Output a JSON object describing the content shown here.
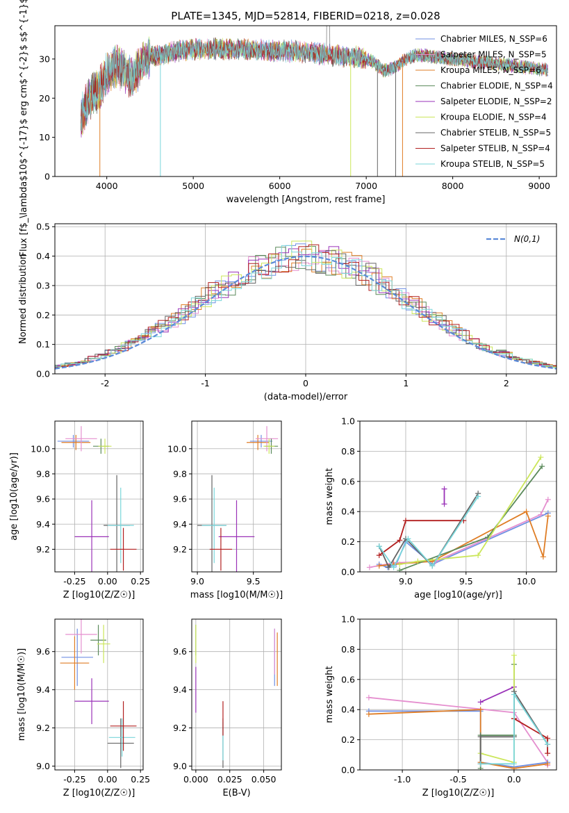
{
  "colors": {
    "chabrier_miles": "#6f8fe3",
    "salpeter_miles": "#e58fcf",
    "kroupa_miles": "#df7d25",
    "chabrier_elodie": "#5b8a5b",
    "salpeter_elodie": "#9a32b8",
    "kroupa_elodie": "#cbe65a",
    "chabrier_stelib": "#646464",
    "salpeter_stelib": "#b21f1f",
    "kroupa_stelib": "#79d6da",
    "normal": "#5b8ad8"
  },
  "chart_data": [
    {
      "id": "spectrum",
      "type": "line",
      "title": "PLATE=1345, MJD=52814, FIBERID=0218, z=0.028",
      "xlabel": "wavelength [Angstrom, rest frame]",
      "ylabel": "Flux [f$_\\lambda$10$^{-17}$ erg cm$^{-2}$ s$^{-1}$ A$^{-1}$]",
      "xlim": [
        3400,
        9200
      ],
      "ylim": [
        0,
        38.5
      ],
      "xticks": [
        "4000",
        "5000",
        "6000",
        "7000",
        "8000",
        "9000"
      ],
      "yticks": [
        "0",
        "10",
        "20",
        "30"
      ],
      "grid": false,
      "legend_position": "top-right",
      "series": [
        {
          "name": "Chabrier MILES, N_SSP=6",
          "key": "chabrier_miles"
        },
        {
          "name": "Salpeter MILES, N_SSP=5",
          "key": "salpeter_miles"
        },
        {
          "name": "Kroupa MILES, N_SSP=6",
          "key": "kroupa_miles"
        },
        {
          "name": "Chabrier ELODIE, N_SSP=4",
          "key": "chabrier_elodie"
        },
        {
          "name": "Salpeter ELODIE, N_SSP=2",
          "key": "salpeter_elodie"
        },
        {
          "name": "Kroupa ELODIE, N_SSP=4",
          "key": "kroupa_elodie"
        },
        {
          "name": "Chabrier STELIB, N_SSP=5",
          "key": "chabrier_stelib"
        },
        {
          "name": "Salpeter STELIB, N_SSP=4",
          "key": "salpeter_stelib"
        },
        {
          "name": "Kroupa STELIB, N_SSP=5",
          "key": "kroupa_stelib"
        }
      ],
      "continuum": {
        "x": [
          3700,
          3800,
          3900,
          4000,
          4100,
          4200,
          4300,
          4400,
          4500,
          4600,
          4700,
          4800,
          5000,
          5200,
          5400,
          5600,
          5800,
          6000,
          6200,
          6400,
          6600,
          6800,
          6900,
          7000,
          7100,
          7200,
          7300,
          7400,
          7500,
          7600,
          7800,
          8000,
          8200,
          8400,
          8600,
          8800,
          9000,
          9100
        ],
        "y": [
          15,
          20,
          22,
          26,
          28,
          27,
          25,
          29,
          31,
          31,
          31.5,
          32,
          32.5,
          32.5,
          32.5,
          32.5,
          32.2,
          32,
          32,
          31.5,
          31,
          30.5,
          30.5,
          30,
          29,
          27,
          27.5,
          29,
          30.5,
          31,
          30.5,
          30,
          29.5,
          29,
          28.5,
          28,
          27.5,
          27
        ]
      },
      "dropouts": [
        {
          "x": 3920,
          "key": "kroupa_miles"
        },
        {
          "x": 4620,
          "key": "kroupa_stelib"
        },
        {
          "x": 6820,
          "key": "kroupa_elodie"
        },
        {
          "x": 7130,
          "key": "chabrier_stelib"
        },
        {
          "x": 7340,
          "key": "chabrier_stelib"
        },
        {
          "x": 7420,
          "key": "kroupa_miles"
        }
      ]
    },
    {
      "id": "residuals",
      "type": "histogram",
      "xlabel": "(data-model)/error",
      "ylabel": "Normed distribution",
      "xlim": [
        -2.5,
        2.5
      ],
      "ylim": [
        0,
        0.51
      ],
      "xticks": [
        "-2",
        "-1",
        "0",
        "1",
        "2"
      ],
      "yticks": [
        "0.0",
        "0.1",
        "0.2",
        "0.3",
        "0.4",
        "0.5"
      ],
      "grid": true,
      "legend_position": "top-right",
      "reference_curve": {
        "name": "N(0,1)",
        "key": "normal",
        "mean": 0,
        "sigma": 1
      }
    },
    {
      "id": "age-vs-Z",
      "type": "errorbar",
      "xlabel": "Z [log10(Z/Z☉)]",
      "ylabel": "age  [log10(age/yr)]",
      "xlim": [
        -0.4,
        0.27
      ],
      "ylim": [
        9.02,
        10.22
      ],
      "xticks": [
        "-0.25",
        "0.00",
        "0.25"
      ],
      "yticks": [
        "9.2",
        "9.4",
        "9.6",
        "9.8",
        "10.0"
      ],
      "grid": true,
      "points": [
        {
          "key": "chabrier_miles",
          "x": -0.26,
          "y": 10.06,
          "xerr": 0.12,
          "yerr": 0.05
        },
        {
          "key": "kroupa_miles",
          "x": -0.24,
          "y": 10.05,
          "xerr": 0.11,
          "yerr": 0.06
        },
        {
          "key": "salpeter_miles",
          "x": -0.2,
          "y": 10.08,
          "xerr": 0.12,
          "yerr": 0.1
        },
        {
          "key": "chabrier_elodie",
          "x": -0.05,
          "y": 10.02,
          "xerr": 0.06,
          "yerr": 0.06
        },
        {
          "key": "kroupa_elodie",
          "x": -0.02,
          "y": 10.02,
          "xerr": 0.05,
          "yerr": 0.06
        },
        {
          "key": "salpeter_elodie",
          "x": -0.12,
          "y": 9.3,
          "xerr": 0.13,
          "yerr": 0.29
        },
        {
          "key": "chabrier_stelib",
          "x": 0.07,
          "y": 9.39,
          "xerr": 0.1,
          "yerr": 0.4
        },
        {
          "key": "kroupa_stelib",
          "x": 0.1,
          "y": 9.39,
          "xerr": 0.1,
          "yerr": 0.3
        },
        {
          "key": "salpeter_stelib",
          "x": 0.12,
          "y": 9.2,
          "xerr": 0.1,
          "yerr": 0.17
        }
      ]
    },
    {
      "id": "age-vs-mass",
      "type": "errorbar",
      "xlabel": "mass [log10(M/M☉)]",
      "ylabel": "",
      "xlim": [
        8.95,
        9.75
      ],
      "ylim": [
        9.02,
        10.22
      ],
      "xticks": [
        "9.0",
        "9.5"
      ],
      "yticks": [
        "9.2",
        "9.4",
        "9.6",
        "9.8",
        "10.0"
      ],
      "grid": true,
      "points": [
        {
          "key": "chabrier_miles",
          "x": 9.57,
          "y": 10.06,
          "xerr": 0.1,
          "yerr": 0.05
        },
        {
          "key": "kroupa_miles",
          "x": 9.54,
          "y": 10.05,
          "xerr": 0.1,
          "yerr": 0.06
        },
        {
          "key": "salpeter_miles",
          "x": 9.62,
          "y": 10.08,
          "xerr": 0.1,
          "yerr": 0.1
        },
        {
          "key": "chabrier_elodie",
          "x": 9.66,
          "y": 10.02,
          "xerr": 0.06,
          "yerr": 0.06
        },
        {
          "key": "kroupa_elodie",
          "x": 9.64,
          "y": 10.02,
          "xerr": 0.05,
          "yerr": 0.06
        },
        {
          "key": "salpeter_elodie",
          "x": 9.35,
          "y": 9.3,
          "xerr": 0.16,
          "yerr": 0.29
        },
        {
          "key": "chabrier_stelib",
          "x": 9.13,
          "y": 9.39,
          "xerr": 0.13,
          "yerr": 0.4
        },
        {
          "key": "kroupa_stelib",
          "x": 9.15,
          "y": 9.39,
          "xerr": 0.11,
          "yerr": 0.3
        },
        {
          "key": "salpeter_stelib",
          "x": 9.21,
          "y": 9.2,
          "xerr": 0.1,
          "yerr": 0.17
        }
      ]
    },
    {
      "id": "weight-vs-age",
      "type": "line",
      "xlabel": "age  [log10(age/yr)]",
      "ylabel": "mass weight",
      "xlim": [
        8.62,
        10.25
      ],
      "ylim": [
        0,
        1
      ],
      "xticks": [
        "9.0",
        "9.5",
        "10.0"
      ],
      "yticks": [
        "0.0",
        "0.2",
        "0.4",
        "0.6",
        "0.8",
        "1.0"
      ],
      "grid": true,
      "series": [
        {
          "key": "chabrier_miles",
          "x": [
            8.78,
            8.85,
            8.92,
            9.0,
            9.22,
            10.18
          ],
          "y": [
            0.05,
            0.03,
            0.05,
            0.2,
            0.05,
            0.39
          ]
        },
        {
          "key": "salpeter_miles",
          "x": [
            8.7,
            8.9,
            9.25,
            10.12,
            10.18
          ],
          "y": [
            0.03,
            0.06,
            0.07,
            0.38,
            0.48
          ]
        },
        {
          "key": "kroupa_miles",
          "x": [
            8.78,
            8.9,
            9.22,
            10.0,
            10.14,
            10.18
          ],
          "y": [
            0.04,
            0.05,
            0.07,
            0.4,
            0.1,
            0.37
          ]
        },
        {
          "key": "chabrier_elodie",
          "x": [
            8.95,
            9.68,
            10.13
          ],
          "y": [
            0.01,
            0.23,
            0.7
          ]
        },
        {
          "key": "salpeter_elodie",
          "x": [
            9.32,
            9.32
          ],
          "y": [
            0.45,
            0.55
          ]
        },
        {
          "key": "kroupa_elodie",
          "x": [
            8.95,
            9.1,
            9.6,
            10.12
          ],
          "y": [
            0.05,
            0.07,
            0.11,
            0.76
          ]
        },
        {
          "key": "chabrier_stelib",
          "x": [
            8.78,
            8.86,
            9.0,
            9.22,
            9.6
          ],
          "y": [
            0.17,
            0.03,
            0.22,
            0.04,
            0.52
          ]
        },
        {
          "key": "salpeter_stelib",
          "x": [
            8.78,
            8.95,
            9.0,
            9.48
          ],
          "y": [
            0.11,
            0.21,
            0.34,
            0.34
          ]
        },
        {
          "key": "kroupa_stelib",
          "x": [
            8.78,
            8.9,
            9.02,
            9.22,
            9.6
          ],
          "y": [
            0.17,
            0.03,
            0.22,
            0.04,
            0.5
          ]
        }
      ]
    },
    {
      "id": "mass-vs-Z",
      "type": "errorbar",
      "xlabel": "Z [log10(Z/Z☉)]",
      "ylabel": "mass [log10(M/M☉)]",
      "xlim": [
        -0.4,
        0.27
      ],
      "ylim": [
        8.98,
        9.77
      ],
      "xticks": [
        "-0.25",
        "0.00",
        "0.25"
      ],
      "yticks": [
        "9.0",
        "9.2",
        "9.4",
        "9.6"
      ],
      "grid": true,
      "points": [
        {
          "key": "chabrier_miles",
          "x": -0.23,
          "y": 9.57,
          "xerr": 0.12,
          "yerr": 0.15
        },
        {
          "key": "kroupa_miles",
          "x": -0.25,
          "y": 9.54,
          "xerr": 0.11,
          "yerr": 0.14
        },
        {
          "key": "salpeter_miles",
          "x": -0.2,
          "y": 9.69,
          "xerr": 0.12,
          "yerr": 0.1
        },
        {
          "key": "chabrier_elodie",
          "x": -0.07,
          "y": 9.66,
          "xerr": 0.06,
          "yerr": 0.08
        },
        {
          "key": "kroupa_elodie",
          "x": -0.03,
          "y": 9.64,
          "xerr": 0.05,
          "yerr": 0.1
        },
        {
          "key": "salpeter_elodie",
          "x": -0.12,
          "y": 9.34,
          "xerr": 0.13,
          "yerr": 0.12
        },
        {
          "key": "chabrier_stelib",
          "x": 0.1,
          "y": 9.12,
          "xerr": 0.1,
          "yerr": 0.13
        },
        {
          "key": "kroupa_stelib",
          "x": 0.11,
          "y": 9.15,
          "xerr": 0.1,
          "yerr": 0.1
        },
        {
          "key": "salpeter_stelib",
          "x": 0.12,
          "y": 9.21,
          "xerr": 0.1,
          "yerr": 0.13
        }
      ]
    },
    {
      "id": "mass-vs-EBV",
      "type": "errorbar",
      "xlabel": "E(B-V)",
      "ylabel": "",
      "xlim": [
        -0.003,
        0.063
      ],
      "ylim": [
        8.98,
        9.77
      ],
      "xticks": [
        "0.000",
        "0.025",
        "0.050"
      ],
      "yticks": [
        "9.0",
        "9.2",
        "9.4",
        "9.6"
      ],
      "grid": true,
      "points": [
        {
          "key": "chabrier_miles",
          "x": 0.058,
          "y": 9.57,
          "xerr": 0,
          "yerr": 0.15
        },
        {
          "key": "kroupa_miles",
          "x": 0.06,
          "y": 9.56,
          "xerr": 0,
          "yerr": 0.14
        },
        {
          "key": "salpeter_miles",
          "x": 0.058,
          "y": 9.6,
          "xerr": 0,
          "yerr": 0.12
        },
        {
          "key": "chabrier_elodie",
          "x": 0.0,
          "y": 9.66,
          "xerr": 0,
          "yerr": 0.08
        },
        {
          "key": "kroupa_elodie",
          "x": 0.0,
          "y": 9.64,
          "xerr": 0,
          "yerr": 0.1
        },
        {
          "key": "salpeter_elodie",
          "x": 0.0,
          "y": 9.4,
          "xerr": 0,
          "yerr": 0.12
        },
        {
          "key": "chabrier_stelib",
          "x": 0.02,
          "y": 9.12,
          "xerr": 0,
          "yerr": 0.13
        },
        {
          "key": "kroupa_stelib",
          "x": 0.02,
          "y": 9.13,
          "xerr": 0,
          "yerr": 0.1
        },
        {
          "key": "salpeter_stelib",
          "x": 0.02,
          "y": 9.25,
          "xerr": 0,
          "yerr": 0.09
        }
      ]
    },
    {
      "id": "weight-vs-Z",
      "type": "line",
      "xlabel": "Z [log10(Z/Z☉)]",
      "ylabel": "mass weight",
      "xlim": [
        -1.38,
        0.38
      ],
      "ylim": [
        0,
        1
      ],
      "xticks": [
        "-1.0",
        "-0.5",
        "0.0"
      ],
      "yticks": [
        "0.0",
        "0.2",
        "0.4",
        "0.6",
        "0.8",
        "1.0"
      ],
      "grid": true,
      "series": [
        {
          "key": "salpeter_miles",
          "x": [
            -1.3,
            0.0,
            0.3,
            0.3
          ],
          "y": [
            0.48,
            0.38,
            0.05,
            0.03
          ]
        },
        {
          "key": "chabrier_miles",
          "x": [
            -1.3,
            -0.3,
            -0.3,
            0.0,
            0.3
          ],
          "y": [
            0.39,
            0.39,
            0.05,
            0.02,
            0.05
          ]
        },
        {
          "key": "kroupa_miles",
          "x": [
            -1.3,
            -0.3,
            -0.3,
            0.0,
            0.3
          ],
          "y": [
            0.37,
            0.4,
            0.05,
            0.01,
            0.04
          ]
        },
        {
          "key": "chabrier_elodie",
          "x": [
            -0.3,
            -0.3,
            0.0,
            0.0
          ],
          "y": [
            0.01,
            0.23,
            0.23,
            0.7
          ]
        },
        {
          "key": "salpeter_elodie",
          "x": [
            -0.3,
            0.0
          ],
          "y": [
            0.45,
            0.55
          ]
        },
        {
          "key": "kroupa_elodie",
          "x": [
            -0.3,
            0.0,
            0.0
          ],
          "y": [
            0.11,
            0.05,
            0.76
          ]
        },
        {
          "key": "chabrier_stelib",
          "x": [
            -0.3,
            -0.3,
            0.0,
            0.0,
            0.3
          ],
          "y": [
            0.04,
            0.22,
            0.22,
            0.52,
            0.17
          ]
        },
        {
          "key": "salpeter_stelib",
          "x": [
            0.0,
            0.0,
            0.3,
            0.3
          ],
          "y": [
            0.34,
            0.34,
            0.21,
            0.11
          ]
        },
        {
          "key": "kroupa_stelib",
          "x": [
            -0.3,
            0.0,
            0.0,
            0.3
          ],
          "y": [
            0.04,
            0.04,
            0.5,
            0.17
          ]
        }
      ]
    }
  ]
}
